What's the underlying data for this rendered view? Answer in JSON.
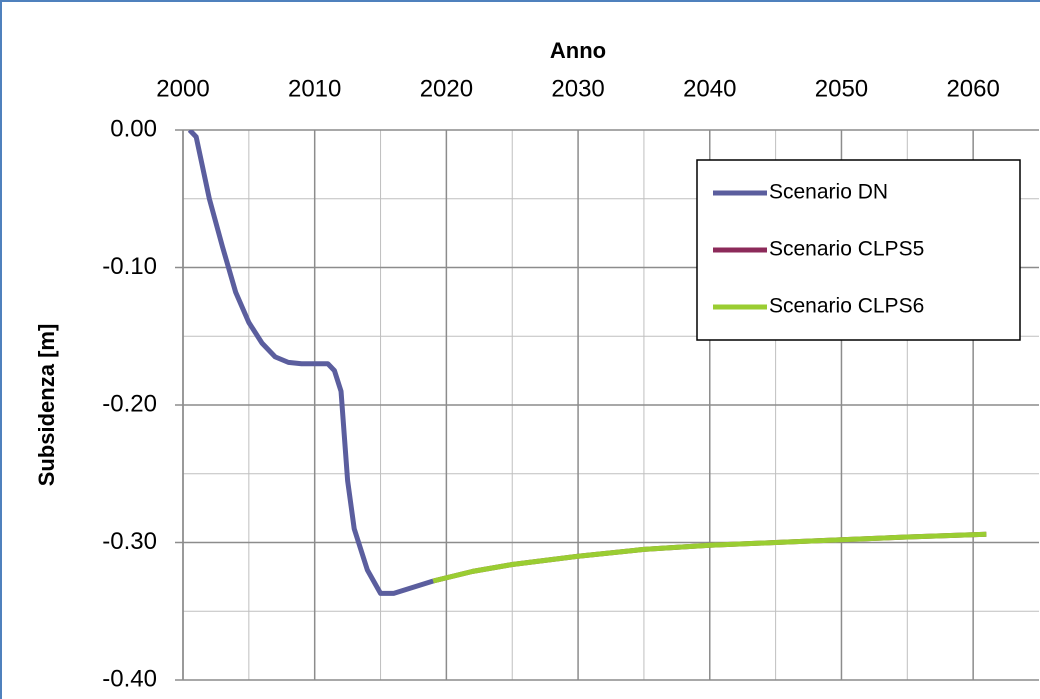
{
  "chart_data": {
    "type": "line",
    "x_label": "Anno",
    "y_label": "Subsidenza [m]",
    "xlim": [
      2000,
      2065
    ],
    "xticks": [
      2000,
      2010,
      2020,
      2030,
      2040,
      2050,
      2060
    ],
    "ylim": [
      -0.4,
      0
    ],
    "yticks": [
      {
        "value": 0,
        "label": "0.00"
      },
      {
        "value": -0.1,
        "label": "-0.10"
      },
      {
        "value": -0.2,
        "label": "-0.20"
      },
      {
        "value": -0.3,
        "label": "-0.30"
      },
      {
        "value": -0.4,
        "label": "-0.40"
      }
    ],
    "grid": true,
    "legend": "top-right",
    "series": [
      {
        "name": "Scenario DN",
        "color": "#5b5e9e",
        "x": [
          2000.5,
          2001,
          2002,
          2003,
          2004,
          2005,
          2006,
          2007,
          2008,
          2009,
          2010,
          2011,
          2011.5,
          2012,
          2012.5,
          2013,
          2014,
          2015,
          2016,
          2017,
          2018,
          2019
        ],
        "values": [
          0,
          -0.005,
          -0.05,
          -0.085,
          -0.118,
          -0.14,
          -0.155,
          -0.165,
          -0.169,
          -0.17,
          -0.17,
          -0.17,
          -0.175,
          -0.19,
          -0.255,
          -0.29,
          -0.32,
          -0.337,
          -0.337,
          -0.334,
          -0.331,
          -0.328
        ]
      },
      {
        "name": "Scenario CLPS5",
        "color": "#8c2a5a",
        "x": [
          2019,
          2022,
          2025,
          2030,
          2035,
          2040,
          2045,
          2050,
          2055,
          2061
        ],
        "values": [
          -0.328,
          -0.321,
          -0.316,
          -0.31,
          -0.305,
          -0.302,
          -0.3,
          -0.298,
          -0.296,
          -0.294
        ]
      },
      {
        "name": "Scenario CLPS6",
        "color": "#9acd32",
        "x": [
          2019,
          2022,
          2025,
          2030,
          2035,
          2040,
          2045,
          2050,
          2055,
          2061
        ],
        "values": [
          -0.328,
          -0.321,
          -0.316,
          -0.31,
          -0.305,
          -0.302,
          -0.3,
          -0.298,
          -0.296,
          -0.294
        ]
      }
    ]
  }
}
